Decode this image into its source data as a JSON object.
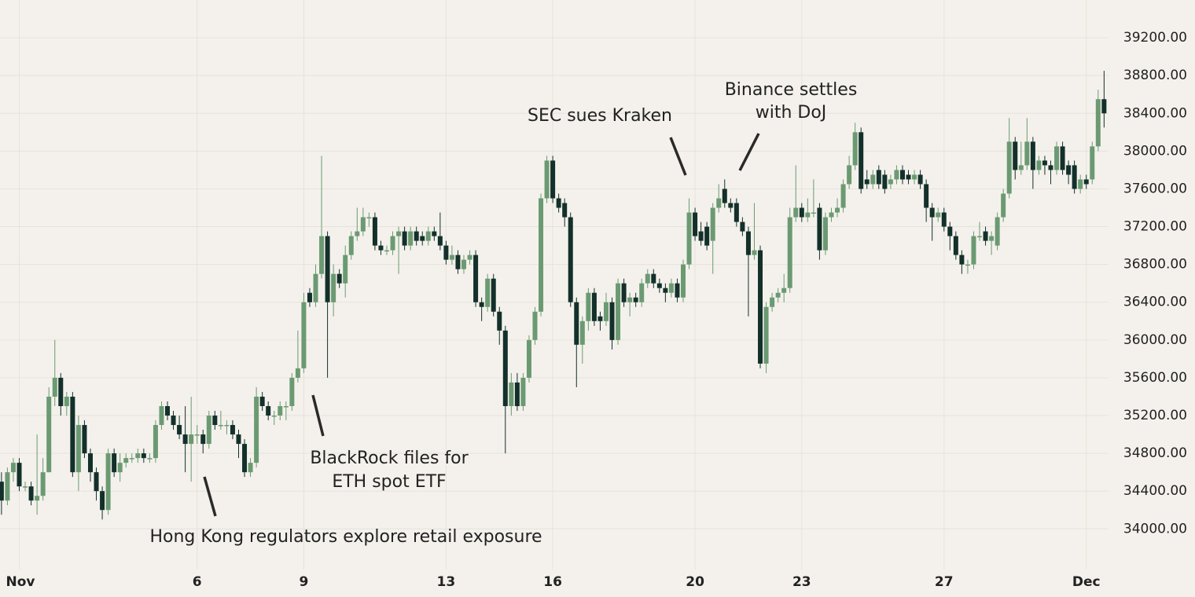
{
  "chart_data": {
    "type": "candlestick",
    "xlim": [
      -13,
      735
    ],
    "xticks": [
      {
        "value": 0,
        "label": "Nov"
      },
      {
        "value": 120,
        "label": "6"
      },
      {
        "value": 192,
        "label": "9"
      },
      {
        "value": 288,
        "label": "13"
      },
      {
        "value": 360,
        "label": "16"
      },
      {
        "value": 456,
        "label": "20"
      },
      {
        "value": 528,
        "label": "23"
      },
      {
        "value": 624,
        "label": "27"
      },
      {
        "value": 720,
        "label": "Dec"
      }
    ],
    "ylim": [
      33570,
      39600
    ],
    "yticks": [
      {
        "value": 34000,
        "label": "34000.00"
      },
      {
        "value": 34400,
        "label": "34400.00"
      },
      {
        "value": 34800,
        "label": "34800.00"
      },
      {
        "value": 35200,
        "label": "35200.00"
      },
      {
        "value": 35600,
        "label": "35600.00"
      },
      {
        "value": 36000,
        "label": "36000.00"
      },
      {
        "value": 36400,
        "label": "36400.00"
      },
      {
        "value": 36800,
        "label": "36800.00"
      },
      {
        "value": 37200,
        "label": "37200.00"
      },
      {
        "value": 37600,
        "label": "37600.00"
      },
      {
        "value": 38000,
        "label": "38000.00"
      },
      {
        "value": 38400,
        "label": "38400.00"
      },
      {
        "value": 38800,
        "label": "38800.00"
      },
      {
        "value": 39200,
        "label": "39200.00"
      }
    ],
    "grid": true,
    "up_color": "#6b9a72",
    "down_color": "#13302a",
    "x": [
      -12,
      -8,
      -4,
      0,
      4,
      8,
      12,
      16,
      20,
      24,
      28,
      32,
      36,
      40,
      44,
      48,
      52,
      56,
      60,
      64,
      68,
      72,
      76,
      80,
      84,
      88,
      92,
      96,
      100,
      104,
      108,
      112,
      116,
      120,
      124,
      128,
      132,
      136,
      140,
      144,
      148,
      152,
      156,
      160,
      164,
      168,
      172,
      176,
      180,
      184,
      188,
      192,
      196,
      200,
      204,
      208,
      212,
      216,
      220,
      224,
      228,
      232,
      236,
      240,
      244,
      248,
      252,
      256,
      260,
      264,
      268,
      272,
      276,
      280,
      284,
      288,
      292,
      296,
      300,
      304,
      308,
      312,
      316,
      320,
      324,
      328,
      332,
      336,
      340,
      344,
      348,
      352,
      356,
      360,
      364,
      368,
      372,
      376,
      380,
      384,
      388,
      392,
      396,
      400,
      404,
      408,
      412,
      416,
      420,
      424,
      428,
      432,
      436,
      440,
      444,
      448,
      452,
      456,
      460,
      464,
      468,
      472,
      476,
      480,
      484,
      488,
      492,
      496,
      500,
      504,
      508,
      512,
      516,
      520,
      524,
      528,
      532,
      536,
      540,
      544,
      548,
      552,
      556,
      560,
      564,
      568,
      572,
      576,
      580,
      584,
      588,
      592,
      596,
      600,
      604,
      608,
      612,
      616,
      620,
      624,
      628,
      632,
      636,
      640,
      644,
      648,
      652,
      656,
      660,
      664,
      668,
      672,
      676,
      680,
      684,
      688,
      692,
      696,
      700,
      704,
      708,
      712,
      716,
      720,
      724,
      728,
      732
    ],
    "open": [
      34500,
      34300,
      34600,
      34700,
      34450,
      34450,
      34300,
      34350,
      34600,
      35400,
      35600,
      35300,
      35400,
      34600,
      35100,
      34800,
      34600,
      34400,
      34200,
      34800,
      34600,
      34700,
      34750,
      34750,
      34800,
      34750,
      34750,
      35100,
      35300,
      35200,
      35100,
      35000,
      34900,
      35000,
      35000,
      34900,
      35200,
      35100,
      35100,
      35100,
      35000,
      34900,
      34600,
      34700,
      35400,
      35300,
      35200,
      35200,
      35300,
      35300,
      35600,
      35700,
      36500,
      36400,
      36700,
      37100,
      36400,
      36700,
      36600,
      36900,
      37100,
      37150,
      37300,
      37300,
      37000,
      36950,
      36950,
      37100,
      37150,
      37000,
      37150,
      37100,
      37050,
      37150,
      37100,
      37000,
      36850,
      36900,
      36750,
      36850,
      36900,
      36400,
      36350,
      36650,
      36300,
      36100,
      35300,
      35550,
      35300,
      35600,
      36000,
      36300,
      37500,
      37900,
      37500,
      37450,
      37300,
      36400,
      35950,
      36200,
      36500,
      36250,
      36200,
      36400,
      36000,
      36600,
      36400,
      36450,
      36400,
      36600,
      36700,
      36600,
      36550,
      36500,
      36600,
      36450,
      36800,
      37350,
      37150,
      37200,
      37050,
      37400,
      37600,
      37450,
      37450,
      37250,
      37150,
      36900,
      36950,
      35750,
      36350,
      36450,
      36500,
      36550,
      37300,
      37400,
      37300,
      37350,
      37400,
      36950,
      37300,
      37350,
      37400,
      37650,
      37850,
      38200,
      37700,
      37650,
      37800,
      37750,
      37650,
      37700,
      37800,
      37750,
      37700,
      37750,
      37650,
      37400,
      37300,
      37350,
      37200,
      37100,
      36900,
      36800,
      36800,
      37100,
      37150,
      37050,
      37000,
      37300,
      37550,
      38100,
      37800,
      37850,
      38100,
      37800,
      37900,
      37850,
      37800,
      38050,
      37850,
      37850,
      37600,
      37700,
      37700,
      38050,
      38550
    ],
    "high": [
      34600,
      34650,
      34750,
      34750,
      34500,
      34500,
      35000,
      34750,
      35500,
      36000,
      35650,
      35450,
      35450,
      35200,
      35150,
      34850,
      34650,
      34450,
      34850,
      34850,
      34800,
      34800,
      34800,
      34850,
      34850,
      34800,
      35150,
      35350,
      35350,
      35250,
      35200,
      35300,
      35400,
      35100,
      35050,
      35250,
      35250,
      35250,
      35150,
      35150,
      35050,
      34950,
      34750,
      35500,
      35450,
      35350,
      35250,
      35350,
      35350,
      35650,
      36100,
      36500,
      36550,
      36800,
      37950,
      37150,
      36800,
      36750,
      37000,
      37150,
      37400,
      37400,
      37350,
      37350,
      37050,
      37000,
      37150,
      37200,
      37200,
      37200,
      37200,
      37150,
      37200,
      37200,
      37350,
      37050,
      37000,
      36950,
      36900,
      36950,
      36950,
      36450,
      36700,
      36700,
      36350,
      36150,
      35650,
      35650,
      35650,
      36050,
      36350,
      37550,
      37950,
      37950,
      37550,
      37500,
      37350,
      36450,
      36250,
      36550,
      36550,
      36300,
      36500,
      36450,
      36650,
      36650,
      36500,
      36500,
      36650,
      36750,
      36750,
      36650,
      36600,
      36650,
      36650,
      36850,
      37500,
      37400,
      37250,
      37250,
      37450,
      37650,
      37700,
      37500,
      37500,
      37300,
      37200,
      37450,
      37000,
      36400,
      36500,
      36550,
      36700,
      37400,
      37850,
      37450,
      37500,
      37700,
      37450,
      37350,
      37400,
      37500,
      37700,
      37950,
      38300,
      38250,
      37800,
      37800,
      37850,
      37800,
      37750,
      37850,
      37850,
      37800,
      37800,
      37800,
      37700,
      37450,
      37400,
      37400,
      37250,
      37150,
      36950,
      36850,
      37150,
      37250,
      37200,
      37150,
      37350,
      37600,
      38350,
      38150,
      38100,
      38350,
      38150,
      37950,
      37950,
      37900,
      38100,
      38100,
      37900,
      37900,
      37750,
      37750,
      38100,
      38650,
      38850
    ],
    "low": [
      34150,
      34250,
      34500,
      34400,
      34400,
      34250,
      34150,
      34300,
      34600,
      35300,
      35200,
      35200,
      34550,
      34400,
      34750,
      34500,
      34300,
      34100,
      34150,
      34550,
      34500,
      34650,
      34700,
      34700,
      34700,
      34700,
      34700,
      35050,
      35150,
      35050,
      34950,
      34600,
      34500,
      34900,
      34800,
      34850,
      35050,
      35050,
      35000,
      34950,
      34750,
      34550,
      34550,
      34650,
      35250,
      35150,
      35100,
      35150,
      35150,
      35250,
      35550,
      35650,
      36350,
      36350,
      36650,
      35600,
      36250,
      36550,
      36450,
      36850,
      37050,
      37100,
      37200,
      36950,
      36900,
      36900,
      36900,
      36700,
      36950,
      36950,
      37000,
      37000,
      37000,
      37050,
      36950,
      36800,
      36800,
      36700,
      36700,
      36800,
      36350,
      36200,
      36300,
      36250,
      35950,
      34800,
      35200,
      35250,
      35250,
      35550,
      35950,
      36250,
      37450,
      37450,
      37350,
      37200,
      36350,
      35500,
      35750,
      36100,
      36150,
      36100,
      36150,
      35900,
      35950,
      36350,
      36250,
      36350,
      36350,
      36550,
      36550,
      36500,
      36400,
      36450,
      36400,
      36400,
      36750,
      37050,
      37000,
      36950,
      36700,
      37350,
      37400,
      37350,
      37200,
      37100,
      36250,
      36850,
      35700,
      35650,
      36300,
      36400,
      36400,
      36500,
      37250,
      37250,
      37250,
      37300,
      36850,
      36900,
      37250,
      37300,
      37350,
      37600,
      37800,
      37550,
      37600,
      37600,
      37600,
      37550,
      37600,
      37650,
      37650,
      37650,
      37650,
      37600,
      37250,
      37050,
      37250,
      37150,
      36950,
      36850,
      36700,
      36700,
      36750,
      37050,
      37000,
      36900,
      36950,
      37250,
      37500,
      37700,
      37750,
      37800,
      37600,
      37750,
      37750,
      37650,
      37750,
      37750,
      37650,
      37550,
      37550,
      37600,
      37650,
      38000,
      38250
    ],
    "close": [
      34300,
      34600,
      34700,
      34450,
      34450,
      34300,
      34350,
      34600,
      35400,
      35600,
      35300,
      35400,
      34600,
      35100,
      34800,
      34600,
      34400,
      34200,
      34800,
      34600,
      34700,
      34750,
      34750,
      34800,
      34750,
      34750,
      35100,
      35300,
      35200,
      35100,
      35000,
      34900,
      35000,
      35000,
      34900,
      35200,
      35100,
      35100,
      35100,
      35000,
      34900,
      34600,
      34700,
      35400,
      35300,
      35200,
      35200,
      35300,
      35300,
      35600,
      35700,
      36400,
      36400,
      36700,
      37100,
      36400,
      36700,
      36600,
      36900,
      37100,
      37150,
      37300,
      37300,
      37000,
      36950,
      36950,
      37100,
      37150,
      37000,
      37150,
      37050,
      37050,
      37150,
      37100,
      37000,
      36850,
      36900,
      36750,
      36850,
      36900,
      36400,
      36350,
      36650,
      36300,
      36100,
      35300,
      35550,
      35300,
      35600,
      36000,
      36300,
      37500,
      37900,
      37500,
      37400,
      37300,
      36400,
      35950,
      36200,
      36500,
      36200,
      36200,
      36400,
      36000,
      36600,
      36400,
      36450,
      36400,
      36600,
      36700,
      36600,
      36550,
      36500,
      36600,
      36450,
      36800,
      37350,
      37100,
      37050,
      37000,
      37400,
      37500,
      37450,
      37400,
      37250,
      37150,
      36900,
      36950,
      35750,
      36350,
      36450,
      36500,
      36550,
      37300,
      37400,
      37300,
      37350,
      37350,
      36950,
      37300,
      37350,
      37400,
      37650,
      37850,
      38200,
      37600,
      37650,
      37750,
      37650,
      37600,
      37700,
      37800,
      37700,
      37700,
      37750,
      37650,
      37400,
      37300,
      37350,
      37200,
      37100,
      36900,
      36800,
      36800,
      37100,
      37100,
      37050,
      37100,
      37300,
      37550,
      38100,
      37800,
      37850,
      38100,
      37800,
      37900,
      37850,
      37800,
      38050,
      37800,
      37750,
      37600,
      37700,
      37650,
      38050,
      38550,
      38400
    ],
    "annotations": [
      {
        "text": [
          "Hong Kong regulators explore retail exposure"
        ]
      },
      {
        "text": [
          "BlackRock files for",
          "ETH spot ETF"
        ]
      },
      {
        "text": [
          "SEC sues Kraken"
        ]
      },
      {
        "text": [
          "Binance settles",
          "with DoJ"
        ]
      }
    ]
  }
}
